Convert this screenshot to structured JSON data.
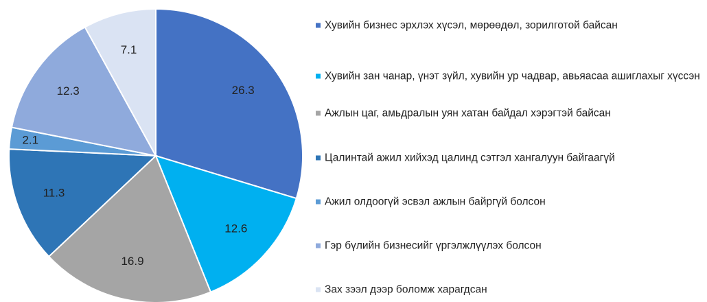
{
  "chart_data": {
    "type": "pie",
    "categories": [
      "Хувийн бизнес эрхлэх хүсэл, мөрөөдөл, зорилготой байсан",
      "Хувийн зан чанар, үнэт зүйл, хувийн ур чадвар, авьяасаа ашиглахыг хүссэн",
      "Ажлын цаг, амьдралын уян хатан байдал хэрэгтэй байсан",
      "Цалинтай ажил хийхэд цалинд сэтгэл хангалуун байгаагүй",
      "Ажил олдоогүй эсвэл ажлын байргүй болсон",
      "Гэр бүлийн бизнесийг үргэлжлүүлэх болсон",
      "Зах зээл дээр боломж харагдсан"
    ],
    "values": [
      26.3,
      12.6,
      16.9,
      11.3,
      2.1,
      12.3,
      7.1
    ],
    "colors": [
      "#4472c4",
      "#00b0f0",
      "#a5a5a5",
      "#2e75b6",
      "#5b9bd5",
      "#8faadc",
      "#dae3f3"
    ],
    "legend": "right"
  }
}
